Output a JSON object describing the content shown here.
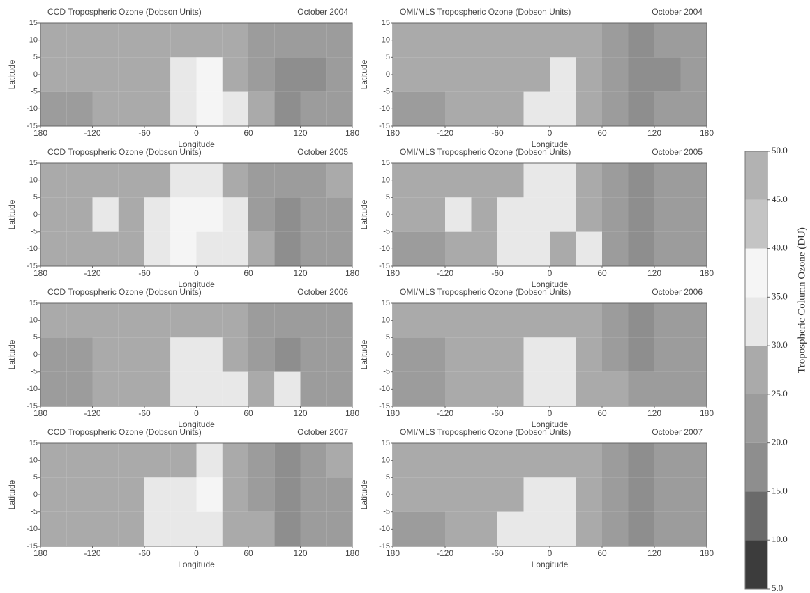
{
  "chart_data": [
    {
      "type": "heatmap",
      "title": "CCD Tropospheric Ozone (Dobson Units)",
      "date": "October 2004",
      "xlabel": "Longitude",
      "ylabel": "Latitude",
      "xlim": [
        -180,
        180
      ],
      "xticks": [
        {
          "value": -180,
          "label": "180"
        },
        -120,
        -60,
        0,
        60,
        120,
        180
      ],
      "ylim": [
        -15,
        15
      ],
      "yticks": [
        15,
        10,
        5,
        0,
        -5,
        -10,
        -15
      ],
      "x": [
        -165,
        -135,
        -105,
        -75,
        -45,
        -15,
        15,
        45,
        75,
        105,
        135,
        165
      ],
      "y": [
        10,
        0,
        -10
      ],
      "z": [
        [
          27,
          27,
          28,
          28,
          28,
          29,
          29,
          28,
          24,
          21,
          22,
          25
        ],
        [
          26,
          26,
          27,
          27,
          27,
          33,
          36,
          29,
          24,
          18,
          20,
          24
        ],
        [
          25,
          25,
          26,
          26,
          28,
          34,
          37,
          31,
          26,
          19,
          21,
          23
        ]
      ]
    },
    {
      "type": "heatmap",
      "title": "OMI/MLS Tropospheric Ozone (Dobson Units)",
      "date": "October 2004",
      "xlabel": "Longitude",
      "ylabel": "Latitude",
      "xlim": [
        -180,
        180
      ],
      "xticks": [
        {
          "value": -180,
          "label": "180"
        },
        -120,
        -60,
        0,
        60,
        120,
        180
      ],
      "ylim": [
        -15,
        15
      ],
      "yticks": [
        15,
        10,
        5,
        0,
        -5,
        -10,
        -15
      ],
      "x": [
        -165,
        -135,
        -105,
        -75,
        -45,
        -15,
        15,
        45,
        75,
        105,
        135,
        165
      ],
      "y": [
        10,
        0,
        -10
      ],
      "z": [
        [
          27,
          27,
          28,
          28,
          28,
          28,
          28,
          28,
          24,
          20,
          21,
          25
        ],
        [
          26,
          26,
          27,
          27,
          27,
          30,
          32,
          28,
          24,
          18,
          20,
          24
        ],
        [
          25,
          25,
          26,
          26,
          28,
          33,
          34,
          29,
          25,
          19,
          21,
          23
        ]
      ]
    },
    {
      "type": "heatmap",
      "title": "CCD Tropospheric Ozone (Dobson Units)",
      "date": "October 2005",
      "xlabel": "Longitude",
      "ylabel": "Latitude",
      "xlim": [
        -180,
        180
      ],
      "xticks": [
        {
          "value": -180,
          "label": "180"
        },
        -120,
        -60,
        0,
        60,
        120,
        180
      ],
      "ylim": [
        -15,
        15
      ],
      "yticks": [
        15,
        10,
        5,
        0,
        -5,
        -10,
        -15
      ],
      "x": [
        -165,
        -135,
        -105,
        -75,
        -45,
        -15,
        15,
        45,
        75,
        105,
        135,
        165
      ],
      "y": [
        10,
        0,
        -10
      ],
      "z": [
        [
          28,
          28,
          28,
          28,
          29,
          33,
          34,
          28,
          25,
          21,
          22,
          26
        ],
        [
          27,
          27,
          33,
          27,
          33,
          36,
          37,
          34,
          25,
          18,
          21,
          25
        ],
        [
          26,
          26,
          27,
          27,
          34,
          36,
          34,
          33,
          26,
          19,
          22,
          24
        ]
      ]
    },
    {
      "type": "heatmap",
      "title": "OMI/MLS Tropospheric Ozone (Dobson Units)",
      "date": "October 2005",
      "xlabel": "Longitude",
      "ylabel": "Latitude",
      "xlim": [
        -180,
        180
      ],
      "xticks": [
        {
          "value": -180,
          "label": "180"
        },
        -120,
        -60,
        0,
        60,
        120,
        180
      ],
      "ylim": [
        -15,
        15
      ],
      "yticks": [
        15,
        10,
        5,
        0,
        -5,
        -10,
        -15
      ],
      "x": [
        -165,
        -135,
        -105,
        -75,
        -45,
        -15,
        15,
        45,
        75,
        105,
        135,
        165
      ],
      "y": [
        10,
        0,
        -10
      ],
      "z": [
        [
          27,
          27,
          28,
          28,
          28,
          31,
          32,
          28,
          24,
          19,
          22,
          25
        ],
        [
          26,
          26,
          31,
          27,
          33,
          34,
          32,
          29,
          24,
          17,
          21,
          24
        ],
        [
          25,
          25,
          26,
          27,
          33,
          33,
          30,
          31,
          25,
          18,
          22,
          23
        ]
      ]
    },
    {
      "type": "heatmap",
      "title": "CCD Tropospheric Ozone (Dobson Units)",
      "date": "October 2006",
      "xlabel": "Longitude",
      "ylabel": "Latitude",
      "xlim": [
        -180,
        180
      ],
      "xticks": [
        {
          "value": -180,
          "label": "180"
        },
        -120,
        -60,
        0,
        60,
        120,
        180
      ],
      "ylim": [
        -15,
        15
      ],
      "yticks": [
        15,
        10,
        5,
        0,
        -5,
        -10,
        -15
      ],
      "x": [
        -165,
        -135,
        -105,
        -75,
        -45,
        -15,
        15,
        45,
        75,
        105,
        135,
        165
      ],
      "y": [
        10,
        0,
        -10
      ],
      "z": [
        [
          26,
          26,
          28,
          28,
          28,
          28,
          28,
          28,
          24,
          21,
          22,
          25
        ],
        [
          25,
          25,
          26,
          27,
          28,
          33,
          35,
          29,
          25,
          19,
          21,
          24
        ],
        [
          24,
          25,
          26,
          26,
          29,
          34,
          33,
          33,
          30,
          33,
          21,
          23
        ]
      ]
    },
    {
      "type": "heatmap",
      "title": "OMI/MLS Tropospheric Ozone (Dobson Units)",
      "date": "October 2006",
      "xlabel": "Longitude",
      "ylabel": "Latitude",
      "xlim": [
        -180,
        180
      ],
      "xticks": [
        {
          "value": -180,
          "label": "180"
        },
        -120,
        -60,
        0,
        60,
        120,
        180
      ],
      "ylim": [
        -15,
        15
      ],
      "yticks": [
        15,
        10,
        5,
        0,
        -5,
        -10,
        -15
      ],
      "x": [
        -165,
        -135,
        -105,
        -75,
        -45,
        -15,
        15,
        45,
        75,
        105,
        135,
        165
      ],
      "y": [
        10,
        0,
        -10
      ],
      "z": [
        [
          26,
          26,
          28,
          28,
          28,
          28,
          28,
          28,
          24,
          20,
          22,
          25
        ],
        [
          25,
          25,
          26,
          27,
          28,
          31,
          32,
          28,
          24,
          18,
          21,
          24
        ],
        [
          24,
          25,
          26,
          26,
          28,
          33,
          32,
          30,
          26,
          21,
          21,
          23
        ]
      ]
    },
    {
      "type": "heatmap",
      "title": "CCD Tropospheric Ozone (Dobson Units)",
      "date": "October 2007",
      "xlabel": "Longitude",
      "ylabel": "Latitude",
      "xlim": [
        -180,
        180
      ],
      "xticks": [
        {
          "value": -180,
          "label": "180"
        },
        -120,
        -60,
        0,
        60,
        120,
        180
      ],
      "ylim": [
        -15,
        15
      ],
      "yticks": [
        15,
        10,
        5,
        0,
        -5,
        -10,
        -15
      ],
      "x": [
        -165,
        -135,
        -105,
        -75,
        -45,
        -15,
        15,
        45,
        75,
        105,
        135,
        165
      ],
      "y": [
        10,
        0,
        -10
      ],
      "z": [
        [
          28,
          28,
          28,
          28,
          28,
          30,
          31,
          28,
          25,
          20,
          23,
          26
        ],
        [
          27,
          27,
          27,
          27,
          33,
          35,
          36,
          29,
          25,
          18,
          22,
          25
        ],
        [
          26,
          26,
          26,
          27,
          33,
          35,
          34,
          30,
          26,
          19,
          22,
          24
        ]
      ]
    },
    {
      "type": "heatmap",
      "title": "OMI/MLS Tropospheric Ozone (Dobson Units)",
      "date": "October 2007",
      "xlabel": "Longitude",
      "ylabel": "Latitude",
      "xlim": [
        -180,
        180
      ],
      "xticks": [
        {
          "value": -180,
          "label": "180"
        },
        -120,
        -60,
        0,
        60,
        120,
        180
      ],
      "ylim": [
        -15,
        15
      ],
      "yticks": [
        15,
        10,
        5,
        0,
        -5,
        -10,
        -15
      ],
      "x": [
        -165,
        -135,
        -105,
        -75,
        -45,
        -15,
        15,
        45,
        75,
        105,
        135,
        165
      ],
      "y": [
        10,
        0,
        -10
      ],
      "z": [
        [
          27,
          27,
          28,
          28,
          28,
          28,
          29,
          28,
          24,
          19,
          22,
          25
        ],
        [
          26,
          26,
          27,
          27,
          30,
          32,
          33,
          28,
          24,
          17,
          21,
          24
        ],
        [
          25,
          25,
          26,
          27,
          32,
          33,
          32,
          29,
          25,
          18,
          21,
          23
        ]
      ]
    }
  ],
  "colorbar": {
    "label": "Tropospheric Column Ozone (DU)",
    "range": [
      5,
      50
    ],
    "ticks": [
      {
        "value": 5,
        "label": "5.0"
      },
      {
        "value": 10,
        "label": "10.0"
      },
      {
        "value": 15,
        "label": "15.0"
      },
      {
        "value": 20,
        "label": "20.0"
      },
      {
        "value": 25,
        "label": "25.0"
      },
      {
        "value": 30,
        "label": "30.0"
      },
      {
        "value": 35,
        "label": "35.0"
      },
      {
        "value": 40,
        "label": "40.0"
      },
      {
        "value": 45,
        "label": "45.0"
      },
      {
        "value": 50,
        "label": "50.0"
      }
    ],
    "colors": [
      "#3c3c3c",
      "#6a6a6a",
      "#8e8e8e",
      "#9c9c9c",
      "#aaaaaa",
      "#e8e8e8",
      "#f5f5f5",
      "#c4c4c4",
      "#b2b2b2"
    ]
  }
}
